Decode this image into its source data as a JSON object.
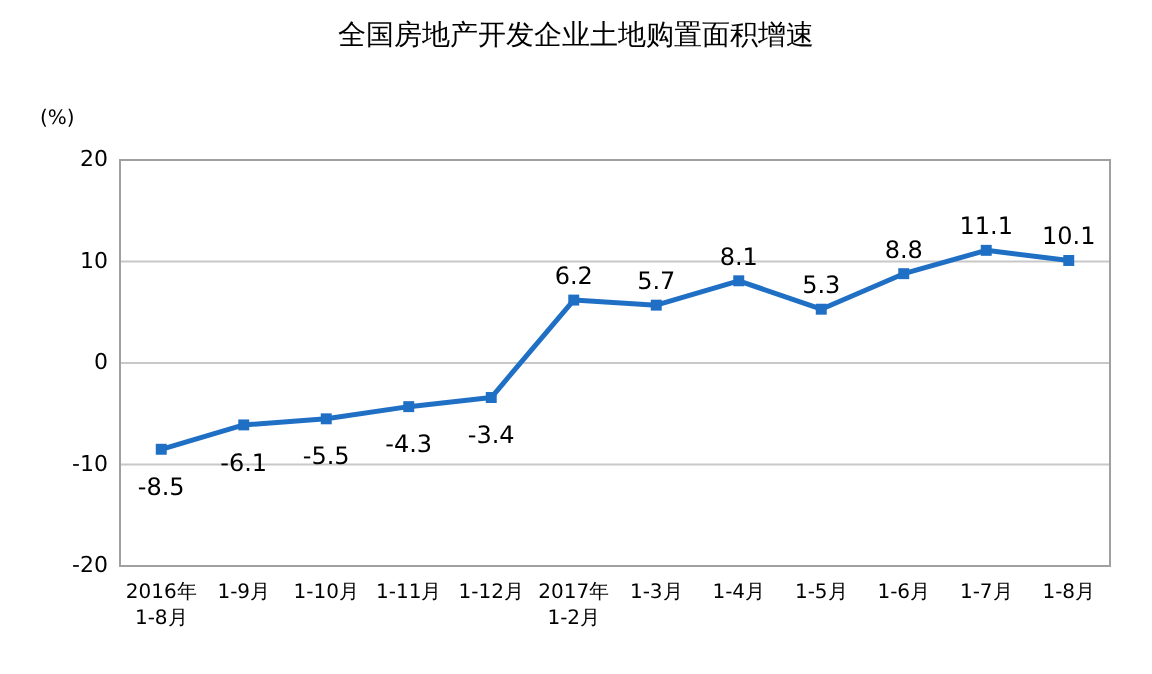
{
  "chart_data": {
    "type": "line",
    "title": "全国房地产开发企业土地购置面积增速",
    "ylabel": "(%)",
    "categories": [
      "2016年\n1-8月",
      "1-9月",
      "1-10月",
      "1-11月",
      "1-12月",
      "2017年\n1-2月",
      "1-3月",
      "1-4月",
      "1-5月",
      "1-6月",
      "1-7月",
      "1-8月"
    ],
    "series": [
      {
        "color": "#1f6fc5",
        "values": [
          -8.5,
          -6.1,
          -5.5,
          -4.3,
          -3.4,
          6.2,
          5.7,
          8.1,
          5.3,
          8.8,
          11.1,
          10.1
        ]
      }
    ],
    "ylim": [
      -20,
      20
    ],
    "yticks": [
      -20,
      -10,
      0,
      10,
      20
    ],
    "grid": "y",
    "marker": "square",
    "data_labels": true
  }
}
